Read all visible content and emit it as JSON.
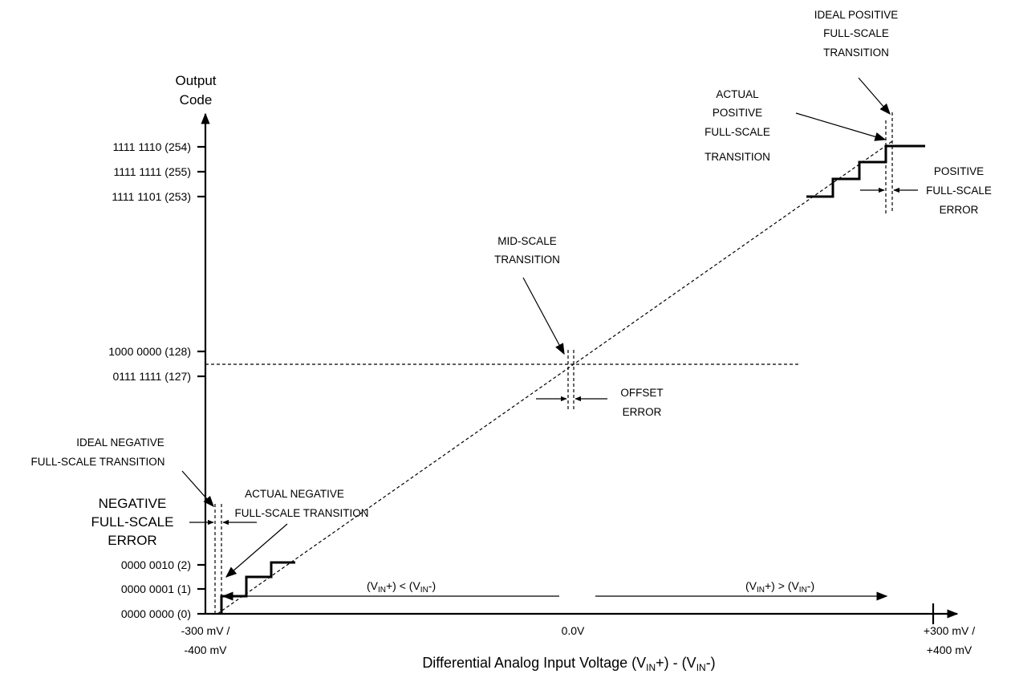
{
  "axes": {
    "y_title": [
      "Output",
      "Code"
    ],
    "y_ticks": [
      {
        "label": "1111 1110 (254)"
      },
      {
        "label": "1111 1111 (255)"
      },
      {
        "label": "1111 1101 (253)"
      },
      {
        "label": "1000 0000 (128)"
      },
      {
        "label": "0111 1111 (127)"
      },
      {
        "label": "0000 0010 (2)"
      },
      {
        "label": "0000 0001 (1)"
      },
      {
        "label": "0000 0000 (0)"
      }
    ],
    "x_ticks": {
      "left": [
        "-300 mV /",
        "-400 mV"
      ],
      "mid": "0.0V",
      "right": [
        "+300 mV /",
        "+400 mV"
      ]
    },
    "x_title": {
      "prefix": "Differential Analog Input Voltage (V",
      "sub1": "IN",
      "middle": "+) - (V",
      "sub2": "IN",
      "suffix": "-)"
    }
  },
  "regions": {
    "left": {
      "a": "(V",
      "asub": "IN",
      "b": "+) < (V",
      "bsub": "IN",
      "c": "-)"
    },
    "right": {
      "a": "(V",
      "asub": "IN",
      "b": "+) > (V",
      "bsub": "IN",
      "c": "-)"
    }
  },
  "annotations": {
    "ideal_positive": [
      "IDEAL POSITIVE",
      "FULL-SCALE",
      "TRANSITION"
    ],
    "actual_positive": [
      "ACTUAL",
      "POSITIVE",
      "FULL-SCALE",
      "TRANSITION"
    ],
    "positive_error": [
      "POSITIVE",
      "FULL-SCALE",
      "ERROR"
    ],
    "mid_scale": [
      "MID-SCALE",
      "TRANSITION"
    ],
    "offset_error": [
      "OFFSET",
      "ERROR"
    ],
    "ideal_negative": [
      "IDEAL NEGATIVE",
      "FULL-SCALE TRANSITION"
    ],
    "actual_negative": [
      "ACTUAL NEGATIVE",
      "FULL-SCALE TRANSITION"
    ],
    "negative_error": [
      "NEGATIVE",
      "FULL-SCALE",
      "ERROR"
    ]
  }
}
